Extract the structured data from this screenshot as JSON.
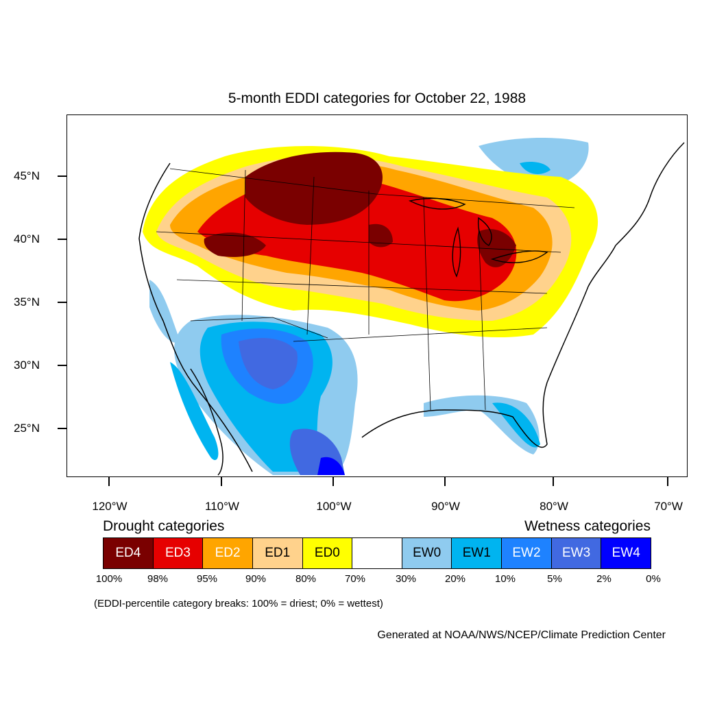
{
  "title": "5-month EDDI categories for October 22, 1988",
  "lat_labels": [
    "45°N",
    "40°N",
    "35°N",
    "30°N",
    "25°N"
  ],
  "lon_labels": [
    "120°W",
    "110°W",
    "100°W",
    "90°W",
    "80°W",
    "70°W"
  ],
  "legend": {
    "drought_heading": "Drought categories",
    "wetness_heading": "Wetness categories",
    "categories": [
      {
        "label": "ED4",
        "color": "#7a0000",
        "text_color": "#ffffff"
      },
      {
        "label": "ED3",
        "color": "#e60000",
        "text_color": "#ffffff"
      },
      {
        "label": "ED2",
        "color": "#ffa500",
        "text_color": "#ffffff"
      },
      {
        "label": "ED1",
        "color": "#ffd28c",
        "text_color": "#000000"
      },
      {
        "label": "ED0",
        "color": "#ffff00",
        "text_color": "#000000"
      },
      {
        "label": "",
        "color": "#ffffff",
        "text_color": "#000000"
      },
      {
        "label": "EW0",
        "color": "#8fcbef",
        "text_color": "#000000"
      },
      {
        "label": "EW1",
        "color": "#00b4f0",
        "text_color": "#000000"
      },
      {
        "label": "EW2",
        "color": "#1e82ff",
        "text_color": "#ffffff"
      },
      {
        "label": "EW3",
        "color": "#4169e1",
        "text_color": "#ffffff"
      },
      {
        "label": "EW4",
        "color": "#0000ff",
        "text_color": "#ffffff"
      }
    ],
    "breaks": [
      "100%",
      "98%",
      "95%",
      "90%",
      "80%",
      "70%",
      "30%",
      "20%",
      "10%",
      "5%",
      "2%",
      "0%"
    ]
  },
  "note": "(EDDI-percentile category breaks: 100% = driest; 0% = wettest)",
  "credit": "Generated at NOAA/NWS/NCEP/Climate Prediction Center"
}
